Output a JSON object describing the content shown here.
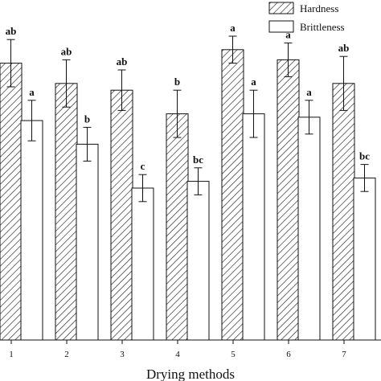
{
  "chart_data": {
    "type": "bar",
    "title": "",
    "xlabel": "Drying methods",
    "ylabel": "",
    "categories": [
      "1",
      "2",
      "3",
      "4",
      "5",
      "6",
      "7"
    ],
    "ylim": [
      0,
      100
    ],
    "grid": false,
    "legend_position": "top-right",
    "series": [
      {
        "name": "Hardness",
        "pattern": "hatched",
        "values": [
          82,
          76,
          74,
          67,
          86,
          83,
          76
        ],
        "errors": [
          7,
          7,
          6,
          7,
          4,
          5,
          8
        ],
        "labels": [
          "ab",
          "ab",
          "ab",
          "b",
          "a",
          "a",
          "ab"
        ]
      },
      {
        "name": "Brittleness",
        "pattern": "plain",
        "values": [
          65,
          58,
          45,
          47,
          67,
          66,
          48
        ],
        "errors": [
          6,
          5,
          4,
          4,
          7,
          5,
          4
        ],
        "labels": [
          "a",
          "b",
          "c",
          "bc",
          "a",
          "a",
          "bc"
        ]
      }
    ]
  }
}
